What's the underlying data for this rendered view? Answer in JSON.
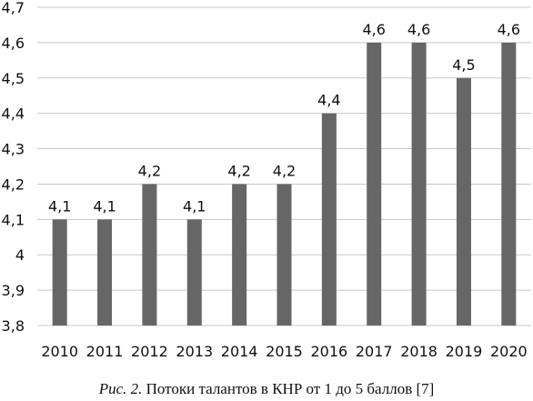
{
  "chart_data": {
    "type": "bar",
    "categories": [
      "2010",
      "2011",
      "2012",
      "2013",
      "2014",
      "2015",
      "2016",
      "2017",
      "2018",
      "2019",
      "2020"
    ],
    "values": [
      4.1,
      4.1,
      4.2,
      4.1,
      4.2,
      4.2,
      4.4,
      4.6,
      4.6,
      4.5,
      4.6
    ],
    "value_labels": [
      "4,1",
      "4,1",
      "4,2",
      "4,1",
      "4,2",
      "4,2",
      "4,4",
      "4,6",
      "4,6",
      "4,5",
      "4,6"
    ],
    "y_ticks": [
      3.8,
      3.9,
      4.0,
      4.1,
      4.2,
      4.3,
      4.4,
      4.5,
      4.6,
      4.7
    ],
    "y_tick_labels": [
      "3,8",
      "3,9",
      "4",
      "4,1",
      "4,2",
      "4,3",
      "4,4",
      "4,5",
      "4,6",
      "4,7"
    ],
    "ylim": [
      3.8,
      4.7
    ],
    "grid": true,
    "bar_color": "#666666",
    "grid_color": "#c8c8c8"
  },
  "caption": {
    "figure_label": "Рис. 2.",
    "text": " Потоки талантов в КНР от 1 до 5 баллов [7]"
  }
}
